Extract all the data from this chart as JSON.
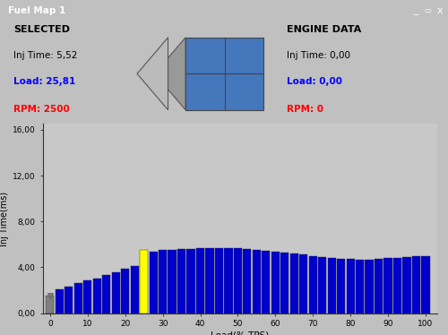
{
  "title_text": "Fuel Map 1",
  "bar_values": [
    1.55,
    2.05,
    2.35,
    2.6,
    2.85,
    3.05,
    3.3,
    3.6,
    3.85,
    4.1,
    5.52,
    5.4,
    5.5,
    5.55,
    5.6,
    5.62,
    5.65,
    5.68,
    5.7,
    5.68,
    5.65,
    5.62,
    5.55,
    5.48,
    5.4,
    5.3,
    5.2,
    5.1,
    5.0,
    4.9,
    4.8,
    4.75,
    4.7,
    4.65,
    4.68,
    4.72,
    4.78,
    4.85,
    4.9,
    4.95,
    5.0
  ],
  "bar_positions": [
    0,
    2.5,
    5,
    7.5,
    10,
    12.5,
    15,
    17.5,
    20,
    22.5,
    25,
    27.5,
    30,
    32.5,
    35,
    37.5,
    40,
    42.5,
    45,
    47.5,
    50,
    52.5,
    55,
    57.5,
    60,
    62.5,
    65,
    67.5,
    70,
    72.5,
    75,
    77.5,
    80,
    82.5,
    85,
    87.5,
    90,
    92.5,
    95,
    97.5,
    100
  ],
  "bar_width": 2.2,
  "highlighted_bar_index": 10,
  "bar_color": "#0000cc",
  "highlighted_color": "#ffff00",
  "first_bar_color": "#808080",
  "background_color": "#c0c0c0",
  "chart_bg_color": "#c8c8c8",
  "xlim": [
    -2,
    103
  ],
  "ylim": [
    0,
    16.5
  ],
  "yticks": [
    0,
    4,
    8,
    12,
    16
  ],
  "ytick_labels": [
    "0,00",
    "4,00",
    "8,00",
    "12,00",
    "16,00"
  ],
  "xticks": [
    0,
    10,
    20,
    30,
    40,
    50,
    60,
    70,
    80,
    90,
    100
  ],
  "ylabel": "Inj Time(ms)",
  "xlabel": "Load(% TPS)",
  "selected_label": "SELECTED",
  "selected_inj": "Inj Time: 5,52",
  "selected_load": "Load: 25,81",
  "selected_rpm": "RPM: 2500",
  "engine_label": "ENGINE DATA",
  "engine_inj": "Inj Time: 0,00",
  "engine_load": "Load: 0,00",
  "engine_rpm": "RPM: 0",
  "title_bar_color": "#000080",
  "title_text_color": "#ffffff",
  "arrow_blue": "#4477bb",
  "arrow_gray": "#999999",
  "arrow_gray2": "#bbbbbb"
}
